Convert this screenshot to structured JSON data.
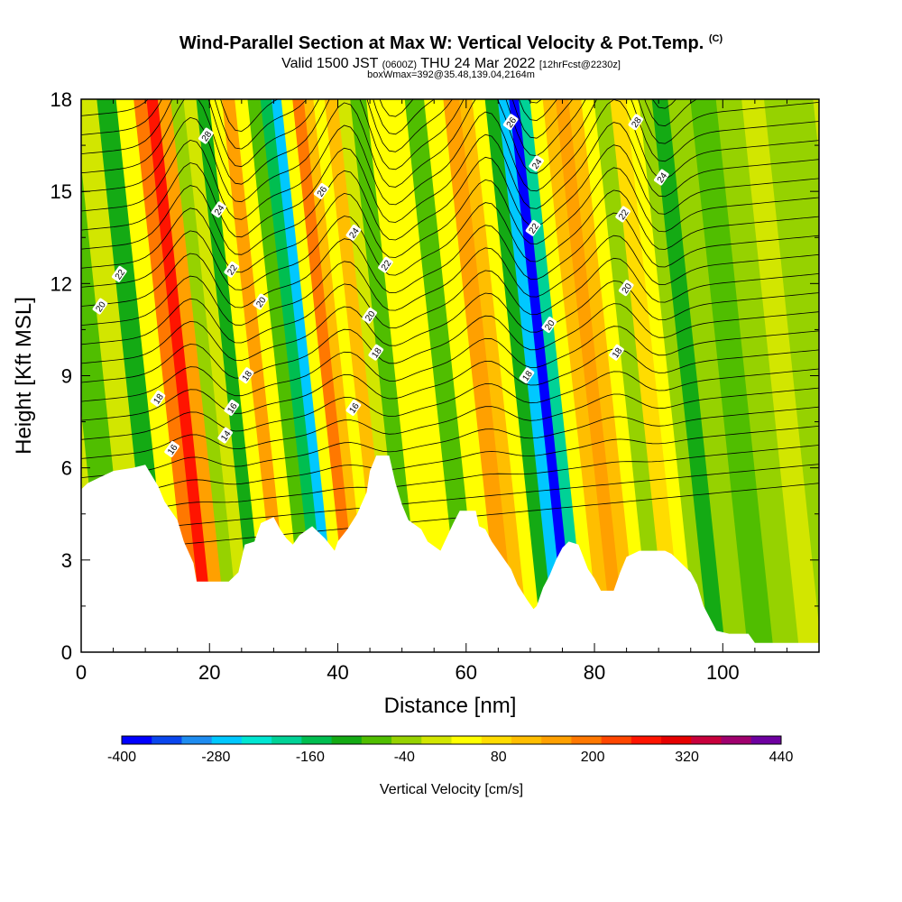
{
  "header": {
    "title_main": "Wind-Parallel Section at Max W: Vertical Velocity & Pot.Temp.",
    "title_tag": "(C)",
    "valid_part1": "Valid 1500 JST",
    "valid_small1": "(0600Z)",
    "valid_part2": "THU 24 Mar 2022",
    "valid_small2": "[12hrFcst@2230z]",
    "box_line": "boxWmax=392@35.48,139.04,2164m"
  },
  "chart_data": {
    "type": "heatmap",
    "xlabel": "Distance [nm]",
    "ylabel": "Height [Kft MSL]",
    "xlim": [
      0,
      115
    ],
    "ylim": [
      0,
      18
    ],
    "x_ticks": [
      0,
      20,
      40,
      60,
      80,
      100
    ],
    "y_ticks": [
      0,
      3,
      6,
      9,
      12,
      15,
      18
    ],
    "colorbar": {
      "label": "Vertical Velocity [cm/s]",
      "tick_labels": [
        -400,
        -280,
        -160,
        -40,
        80,
        200,
        320,
        440
      ],
      "bounds": [
        -400,
        440
      ],
      "step": 40,
      "colors": [
        "#0000ff",
        "#0a46ee",
        "#1e8cf0",
        "#00c8ff",
        "#00e6d2",
        "#00d296",
        "#00be50",
        "#14aa14",
        "#50be00",
        "#96d200",
        "#d2e600",
        "#ffff00",
        "#ffdc00",
        "#ffbe00",
        "#ffa000",
        "#ff7800",
        "#ff4600",
        "#ff1400",
        "#e60000",
        "#c8003c",
        "#a0006e",
        "#6e00a0"
      ]
    },
    "velocity_bands": [
      {
        "x": 0,
        "w": 30
      },
      {
        "x": 4,
        "w": -60
      },
      {
        "x": 8,
        "w": 20
      },
      {
        "x": 11,
        "w": -120
      },
      {
        "x": 14,
        "w": 60
      },
      {
        "x": 16.5,
        "w": 200
      },
      {
        "x": 18,
        "w": 300
      },
      {
        "x": 20,
        "w": 160
      },
      {
        "x": 22,
        "w": -40
      },
      {
        "x": 24,
        "w": 30
      },
      {
        "x": 26,
        "w": -120
      },
      {
        "x": 28,
        "w": 40
      },
      {
        "x": 30,
        "w": 160
      },
      {
        "x": 32,
        "w": 60
      },
      {
        "x": 34,
        "w": -60
      },
      {
        "x": 36,
        "w": -160
      },
      {
        "x": 37.5,
        "w": -260
      },
      {
        "x": 39,
        "w": 40
      },
      {
        "x": 41,
        "w": 200
      },
      {
        "x": 42.5,
        "w": 120
      },
      {
        "x": 44,
        "w": 40
      },
      {
        "x": 46,
        "w": 120
      },
      {
        "x": 48,
        "w": 20
      },
      {
        "x": 50,
        "w": -80
      },
      {
        "x": 53,
        "w": 60
      },
      {
        "x": 56,
        "w": 40
      },
      {
        "x": 59,
        "w": -60
      },
      {
        "x": 62,
        "w": 40
      },
      {
        "x": 65,
        "w": 180
      },
      {
        "x": 67,
        "w": 120
      },
      {
        "x": 69,
        "w": 40
      },
      {
        "x": 71,
        "w": -120
      },
      {
        "x": 73,
        "w": -260
      },
      {
        "x": 74.5,
        "w": -392
      },
      {
        "x": 76,
        "w": -200
      },
      {
        "x": 78,
        "w": 40
      },
      {
        "x": 80,
        "w": 120
      },
      {
        "x": 82,
        "w": 180
      },
      {
        "x": 84,
        "w": 120
      },
      {
        "x": 86,
        "w": 60
      },
      {
        "x": 88,
        "w": -40
      },
      {
        "x": 91,
        "w": 80
      },
      {
        "x": 93,
        "w": 40
      },
      {
        "x": 95,
        "w": -40
      },
      {
        "x": 97,
        "w": -120
      },
      {
        "x": 100,
        "w": -40
      },
      {
        "x": 104,
        "w": -80
      },
      {
        "x": 108,
        "w": -20
      },
      {
        "x": 112,
        "w": 0
      },
      {
        "x": 115,
        "w": -20
      }
    ],
    "theta_contours": [
      {
        "label": "14",
        "labels_at": [
          [
            22.5,
            4.7
          ]
        ]
      },
      {
        "label": "16",
        "labels_at": [
          [
            14.2,
            4.4
          ],
          [
            23.5,
            5.3
          ],
          [
            42.5,
            5.3
          ]
        ]
      },
      {
        "label": "18",
        "labels_at": [
          [
            12.0,
            5.5
          ],
          [
            25.8,
            6.0
          ],
          [
            46.0,
            6.5
          ],
          [
            69.5,
            6.0
          ],
          [
            83.5,
            6.5
          ]
        ]
      },
      {
        "label": "20",
        "labels_at": [
          [
            3.0,
            7.5
          ],
          [
            28.0,
            7.6
          ],
          [
            45.0,
            7.3
          ],
          [
            73.0,
            7.1
          ],
          [
            85.0,
            7.9
          ]
        ]
      },
      {
        "label": "22",
        "labels_at": [
          [
            6.0,
            8.2
          ],
          [
            23.5,
            8.3
          ],
          [
            47.5,
            8.4
          ],
          [
            70.5,
            9.2
          ],
          [
            84.5,
            9.5
          ]
        ]
      },
      {
        "label": "24",
        "labels_at": [
          [
            21.5,
            9.6
          ],
          [
            42.5,
            9.1
          ],
          [
            71.0,
            10.6
          ],
          [
            90.5,
            10.3
          ]
        ]
      },
      {
        "label": "26",
        "labels_at": [
          [
            37.5,
            10.0
          ],
          [
            67.0,
            11.5
          ]
        ]
      },
      {
        "label": "28",
        "labels_at": [
          [
            19.5,
            11.2
          ],
          [
            86.5,
            11.5
          ]
        ]
      }
    ],
    "terrain_kft": [
      [
        0,
        5.3
      ],
      [
        1,
        5.5
      ],
      [
        3,
        5.7
      ],
      [
        5,
        5.9
      ],
      [
        8,
        6.0
      ],
      [
        10,
        6.1
      ],
      [
        12,
        5.4
      ],
      [
        13,
        4.9
      ],
      [
        15,
        4.3
      ],
      [
        16,
        3.6
      ],
      [
        17.5,
        2.9
      ],
      [
        18,
        2.3
      ],
      [
        20,
        2.3
      ],
      [
        23,
        2.3
      ],
      [
        24.5,
        2.6
      ],
      [
        25.5,
        3.5
      ],
      [
        27,
        3.6
      ],
      [
        28,
        4.2
      ],
      [
        30,
        4.4
      ],
      [
        31,
        4.0
      ],
      [
        32,
        3.7
      ],
      [
        33,
        3.5
      ],
      [
        34,
        3.8
      ],
      [
        36,
        4.1
      ],
      [
        38,
        3.7
      ],
      [
        39.5,
        3.3
      ],
      [
        40,
        3.6
      ],
      [
        41.5,
        4.0
      ],
      [
        43,
        4.5
      ],
      [
        44.5,
        5.2
      ],
      [
        45,
        5.9
      ],
      [
        46,
        6.4
      ],
      [
        48,
        6.4
      ],
      [
        49,
        5.5
      ],
      [
        50,
        4.8
      ],
      [
        51,
        4.3
      ],
      [
        53,
        4.0
      ],
      [
        54,
        3.6
      ],
      [
        56,
        3.3
      ],
      [
        58,
        4.2
      ],
      [
        59,
        4.6
      ],
      [
        61.5,
        4.6
      ],
      [
        62,
        4.1
      ],
      [
        63,
        4.0
      ],
      [
        64,
        3.6
      ],
      [
        65,
        3.3
      ],
      [
        67,
        2.7
      ],
      [
        68,
        2.2
      ],
      [
        69.5,
        1.7
      ],
      [
        70.5,
        1.4
      ],
      [
        71,
        1.5
      ],
      [
        72,
        2.1
      ],
      [
        73,
        2.5
      ],
      [
        74,
        3.0
      ],
      [
        75,
        3.4
      ],
      [
        76,
        3.6
      ],
      [
        77.5,
        3.5
      ],
      [
        79,
        2.7
      ],
      [
        80,
        2.4
      ],
      [
        81,
        2.0
      ],
      [
        83,
        2.0
      ],
      [
        84,
        2.6
      ],
      [
        85,
        3.1
      ],
      [
        87,
        3.3
      ],
      [
        90,
        3.3
      ],
      [
        91,
        3.3
      ],
      [
        92,
        3.2
      ],
      [
        93,
        3.0
      ],
      [
        95,
        2.6
      ],
      [
        96,
        2.2
      ],
      [
        97,
        1.5
      ],
      [
        98,
        1.1
      ],
      [
        99,
        0.7
      ],
      [
        101,
        0.6
      ],
      [
        104,
        0.6
      ],
      [
        105,
        0.3
      ],
      [
        115,
        0.3
      ]
    ]
  }
}
